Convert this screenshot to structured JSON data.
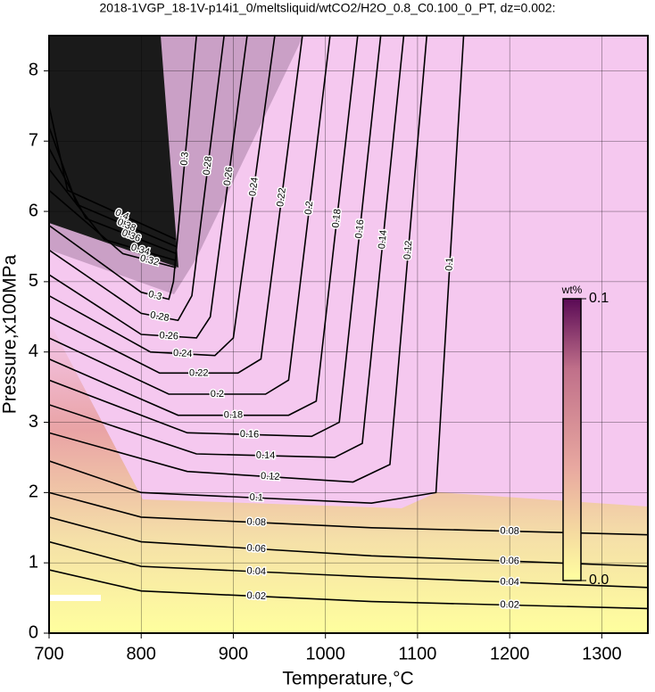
{
  "chart_data": {
    "type": "contour",
    "title": "2018-1VGP_18-1V-p14i1_0/meltsliquid/wtCO2/H2O_0.8_C0.100_0_PT, dz=0.002:",
    "x_label": "Temperature,°C",
    "y_label": "Pressure,x100MPa",
    "xlim": [
      700,
      1350
    ],
    "ylim": [
      0,
      8.5
    ],
    "xticks": [
      700,
      800,
      900,
      1000,
      1100,
      1200,
      1300
    ],
    "yticks": [
      0,
      1,
      2,
      3,
      4,
      5,
      6,
      7,
      8
    ],
    "grid": true,
    "colorbar": {
      "label": "wt%",
      "lim": [
        0,
        0.1
      ],
      "ticks": [
        {
          "value": 0,
          "label": "0.0"
        },
        0.1
      ]
    },
    "contours": [
      {
        "level": 0.02,
        "x": [
          700,
          800,
          1050,
          1350
        ],
        "y": [
          0.9,
          0.6,
          0.45,
          0.35
        ]
      },
      {
        "level": 0.04,
        "x": [
          700,
          800,
          1050,
          1350
        ],
        "y": [
          1.3,
          0.95,
          0.8,
          0.65
        ]
      },
      {
        "level": 0.06,
        "x": [
          700,
          800,
          1050,
          1350
        ],
        "y": [
          1.65,
          1.3,
          1.1,
          0.95
        ]
      },
      {
        "level": 0.08,
        "x": [
          700,
          800,
          1050,
          1350
        ],
        "y": [
          2.0,
          1.65,
          1.5,
          1.4
        ]
      },
      {
        "level": 0.1,
        "x": [
          700,
          800,
          1050,
          1120,
          1150
        ],
        "y": [
          2.45,
          2.0,
          1.85,
          2.0,
          8.5
        ]
      },
      {
        "level": 0.12,
        "x": [
          700,
          850,
          1030,
          1070,
          1110
        ],
        "y": [
          2.85,
          2.3,
          2.15,
          2.4,
          8.5
        ]
      },
      {
        "level": 0.14,
        "x": [
          700,
          860,
          1010,
          1040,
          1085
        ],
        "y": [
          3.25,
          2.55,
          2.5,
          2.7,
          8.5
        ]
      },
      {
        "level": 0.16,
        "x": [
          700,
          850,
          985,
          1015,
          1060
        ],
        "y": [
          3.6,
          2.85,
          2.8,
          3.0,
          8.5
        ]
      },
      {
        "level": 0.18,
        "x": [
          700,
          840,
          960,
          990,
          1035
        ],
        "y": [
          3.9,
          3.1,
          3.1,
          3.3,
          8.5
        ]
      },
      {
        "level": 0.2,
        "x": [
          700,
          830,
          935,
          960,
          1005
        ],
        "y": [
          4.2,
          3.4,
          3.4,
          3.6,
          8.5
        ]
      },
      {
        "level": 0.22,
        "x": [
          700,
          820,
          905,
          930,
          975
        ],
        "y": [
          4.5,
          3.7,
          3.7,
          3.9,
          8.5
        ]
      },
      {
        "level": 0.24,
        "x": [
          700,
          810,
          880,
          900,
          945
        ],
        "y": [
          4.8,
          4.0,
          3.95,
          4.2,
          8.5
        ]
      },
      {
        "level": 0.26,
        "x": [
          700,
          800,
          860,
          875,
          915
        ],
        "y": [
          5.1,
          4.25,
          4.2,
          4.5,
          8.5
        ]
      },
      {
        "level": 0.28,
        "x": [
          700,
          800,
          840,
          855,
          890
        ],
        "y": [
          5.45,
          4.55,
          4.45,
          4.8,
          8.5
        ]
      },
      {
        "level": 0.3,
        "x": [
          700,
          800,
          830,
          835,
          860
        ],
        "y": [
          5.8,
          4.85,
          4.75,
          5.0,
          8.5
        ]
      },
      {
        "level": 0.32,
        "x": [
          700,
          780,
          838
        ],
        "y": [
          6.3,
          5.4,
          5.2
        ]
      },
      {
        "level": 0.34,
        "x": [
          700,
          760,
          838
        ],
        "y": [
          6.6,
          5.6,
          5.3
        ]
      },
      {
        "level": 0.36,
        "x": [
          700,
          740,
          838
        ],
        "y": [
          6.9,
          5.9,
          5.4
        ]
      },
      {
        "level": 0.38,
        "x": [
          700,
          730,
          838
        ],
        "y": [
          7.2,
          6.1,
          5.5
        ]
      },
      {
        "level": 0.4,
        "x": [
          700,
          720,
          838
        ],
        "y": [
          7.5,
          6.3,
          5.6
        ]
      }
    ]
  }
}
